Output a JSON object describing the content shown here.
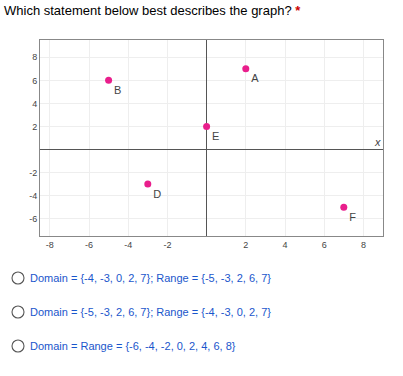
{
  "chart_data": {
    "type": "scatter",
    "title": "Which statement below best describes the graph? *",
    "x_label": "x",
    "series": [
      {
        "x": [
          2,
          -5,
          0,
          -3,
          7
        ],
        "values": [
          7,
          6,
          2,
          -3,
          -5
        ],
        "labels": [
          "A",
          "B",
          "E",
          "D",
          "F"
        ],
        "color": "#e91e8c"
      }
    ],
    "xlim": [
      -8.5,
      9
    ],
    "ylim": [
      -7.5,
      9.5
    ],
    "xticks": [
      -8,
      -6,
      -4,
      -2,
      2,
      4,
      6,
      8
    ],
    "yticks": [
      -6,
      -4,
      -2,
      2,
      4,
      6,
      8
    ],
    "grid": true,
    "annotations": [
      "Domain = {-4, -3, 0, 2, 7}; Range = {-5, -3, 2, 6, 7}",
      "Domain = {-5, -3, 2, 6, 7}; Range = {-4, -3, 0, 2, 7}",
      "Domain = Range = {-6, -4, -2, 0, 2, 4, 6, 8}"
    ],
    "annotation_color": "#1a56cc"
  }
}
